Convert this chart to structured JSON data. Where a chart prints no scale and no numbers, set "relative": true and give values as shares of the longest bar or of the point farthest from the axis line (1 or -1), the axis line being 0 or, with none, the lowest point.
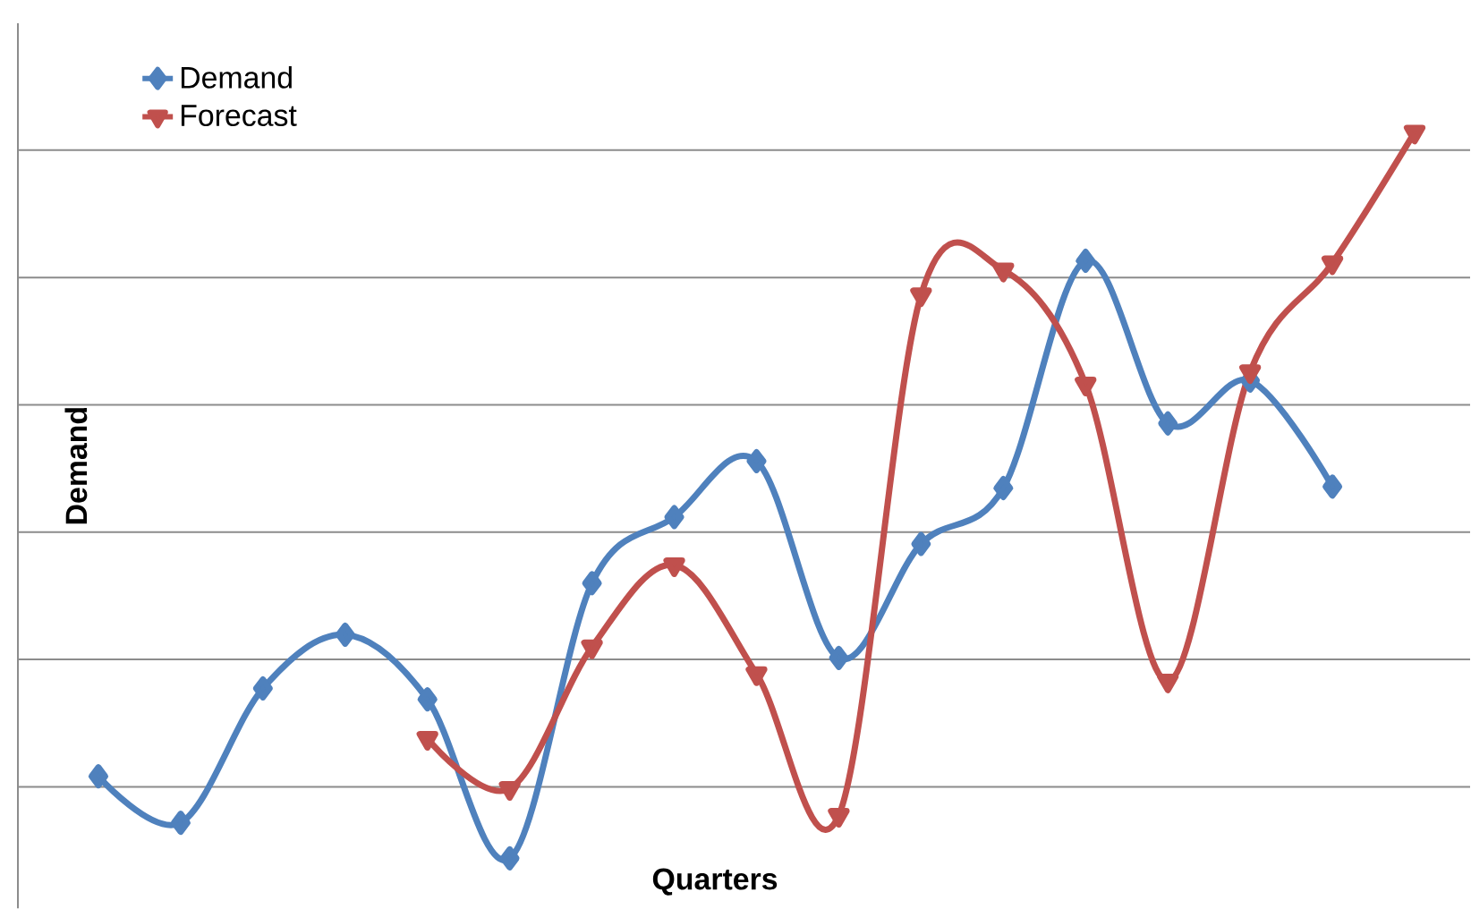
{
  "chart_data": {
    "type": "line",
    "relative": true,
    "xlabel": "Quarters",
    "ylabel": "Demand",
    "categories": [
      null,
      null,
      null,
      null,
      null,
      null,
      null,
      null,
      null,
      null,
      null,
      null,
      null,
      null,
      null,
      null,
      null
    ],
    "series": [
      {
        "name": "Demand",
        "color": "#4f81bd",
        "marker": "diamond",
        "values": [
          0.113,
          0.049,
          0.234,
          0.308,
          0.219,
          0,
          0.379,
          0.47,
          0.547,
          0.276,
          0.433,
          0.51,
          0.823,
          0.599,
          0.658,
          0.512,
          null
        ]
      },
      {
        "name": "Forecast",
        "color": "#c0504d",
        "marker": "triangle",
        "values": [
          null,
          null,
          null,
          null,
          0.165,
          0.096,
          0.291,
          0.404,
          0.254,
          0.059,
          0.776,
          0.81,
          0.653,
          0.244,
          0.67,
          0.82,
          1
        ]
      }
    ],
    "grid": "y",
    "legend": "top left",
    "line_style": "solid"
  }
}
